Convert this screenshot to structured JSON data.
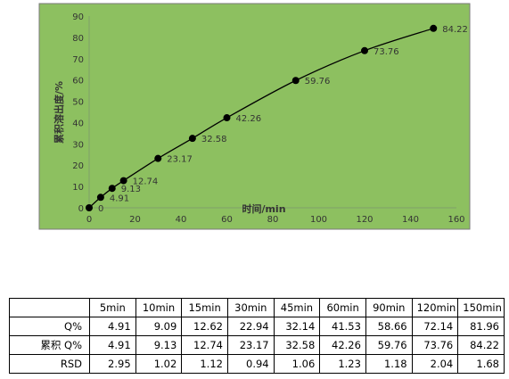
{
  "chart_data": {
    "type": "scatter",
    "xlabel": "时间/min",
    "ylabel": "累积溶出度/%",
    "xlim": [
      0,
      160
    ],
    "ylim": [
      0,
      90
    ],
    "xticks": [
      0,
      20,
      40,
      60,
      80,
      100,
      120,
      140,
      160
    ],
    "yticks": [
      0,
      10,
      20,
      30,
      40,
      50,
      60,
      70,
      80,
      90
    ],
    "grid": false,
    "background_color": "#8dc060",
    "marker_color": "#000000",
    "x": [
      0,
      5,
      10,
      15,
      30,
      45,
      60,
      90,
      120,
      150
    ],
    "y": [
      0,
      4.91,
      9.13,
      12.74,
      23.17,
      32.58,
      42.26,
      59.76,
      73.76,
      84.22
    ],
    "labels": [
      "0",
      "4.91",
      "9.13",
      "12.74",
      "23.17",
      "32.58",
      "42.26",
      "59.76",
      "73.76",
      "84.22"
    ]
  },
  "table": {
    "headers": [
      "",
      "5min",
      "10min",
      "15min",
      "30min",
      "45min",
      "60min",
      "90min",
      "120min",
      "150min"
    ],
    "rows": [
      {
        "label": "Q%",
        "values": [
          "4.91",
          "9.09",
          "12.62",
          "22.94",
          "32.14",
          "41.53",
          "58.66",
          "72.14",
          "81.96"
        ]
      },
      {
        "label": "累积 Q%",
        "values": [
          "4.91",
          "9.13",
          "12.74",
          "23.17",
          "32.58",
          "42.26",
          "59.76",
          "73.76",
          "84.22"
        ]
      },
      {
        "label": "RSD",
        "values": [
          "2.95",
          "1.02",
          "1.12",
          "0.94",
          "1.06",
          "1.23",
          "1.18",
          "2.04",
          "1.68"
        ]
      }
    ]
  }
}
